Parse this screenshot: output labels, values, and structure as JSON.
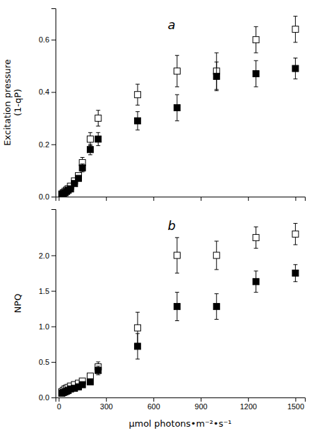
{
  "chart_data": [
    {
      "type": "scatter",
      "ylabel": "Excitation pressure\n(1-qP)",
      "annotations": [
        "a"
      ],
      "x": [
        20,
        30,
        40,
        50,
        60,
        75,
        100,
        125,
        150,
        200,
        250,
        500,
        750,
        1000,
        1250,
        1500
      ],
      "series": [
        {
          "values": [
            0.01,
            0.015,
            0.02,
            0.025,
            0.03,
            0.04,
            0.06,
            0.08,
            0.13,
            0.22,
            0.3,
            0.39,
            0.48,
            0.48,
            0.6,
            0.64
          ],
          "errors": [
            0.003,
            0.003,
            0.003,
            0.003,
            0.003,
            0.003,
            0.008,
            0.01,
            0.02,
            0.025,
            0.03,
            0.04,
            0.06,
            0.07,
            0.05,
            0.05
          ],
          "marker": "square-open",
          "color": "#000000"
        },
        {
          "values": [
            0.008,
            0.012,
            0.015,
            0.02,
            0.025,
            0.03,
            0.05,
            0.07,
            0.11,
            0.18,
            0.22,
            0.29,
            0.34,
            0.46,
            0.47,
            0.49
          ],
          "errors": [
            0.002,
            0.002,
            0.002,
            0.003,
            0.003,
            0.003,
            0.006,
            0.008,
            0.015,
            0.02,
            0.025,
            0.035,
            0.05,
            0.055,
            0.05,
            0.04
          ],
          "marker": "square",
          "color": "#000000"
        }
      ],
      "xlim": [
        -20,
        1560
      ],
      "xticks": [
        0,
        300,
        600,
        900,
        1200,
        1500
      ],
      "ylim": [
        0.0,
        0.72
      ],
      "yticks": [
        {
          "value": 0.0,
          "label": "0.0"
        },
        0.2,
        0.4,
        0.6
      ],
      "tick_labels": "y"
    },
    {
      "type": "scatter",
      "ylabel": "NPQ",
      "xlabel": "μmol photons•m⁻²•s⁻¹",
      "annotations": [
        "b"
      ],
      "x": [
        20,
        30,
        40,
        50,
        60,
        75,
        100,
        125,
        150,
        200,
        250,
        500,
        750,
        1000,
        1250,
        1500
      ],
      "series": [
        {
          "values": [
            0.08,
            0.1,
            0.12,
            0.13,
            0.14,
            0.16,
            0.18,
            0.2,
            0.23,
            0.3,
            0.43,
            0.98,
            2.0,
            2.0,
            2.25,
            2.3
          ],
          "errors": [
            0.015,
            0.015,
            0.015,
            0.015,
            0.015,
            0.015,
            0.015,
            0.02,
            0.025,
            0.03,
            0.07,
            0.22,
            0.25,
            0.2,
            0.15,
            0.15
          ],
          "marker": "square-open",
          "color": "#000000"
        },
        {
          "values": [
            0.06,
            0.07,
            0.08,
            0.09,
            0.1,
            0.12,
            0.13,
            0.15,
            0.18,
            0.22,
            0.38,
            0.72,
            1.28,
            1.28,
            1.63,
            1.75
          ],
          "errors": [
            0.01,
            0.01,
            0.01,
            0.01,
            0.01,
            0.01,
            0.015,
            0.015,
            0.02,
            0.025,
            0.06,
            0.18,
            0.2,
            0.18,
            0.15,
            0.12
          ],
          "marker": "square",
          "color": "#000000"
        }
      ],
      "xlim": [
        -20,
        1560
      ],
      "xticks": [
        0,
        300,
        600,
        900,
        1200,
        1500
      ],
      "ylim": [
        0.0,
        2.65
      ],
      "yticks": [
        {
          "value": 0.0,
          "label": "0.0"
        },
        0.5,
        {
          "value": 1.0,
          "label": "1.0"
        },
        1.5,
        {
          "value": 2.0,
          "label": "2.0"
        }
      ]
    }
  ]
}
